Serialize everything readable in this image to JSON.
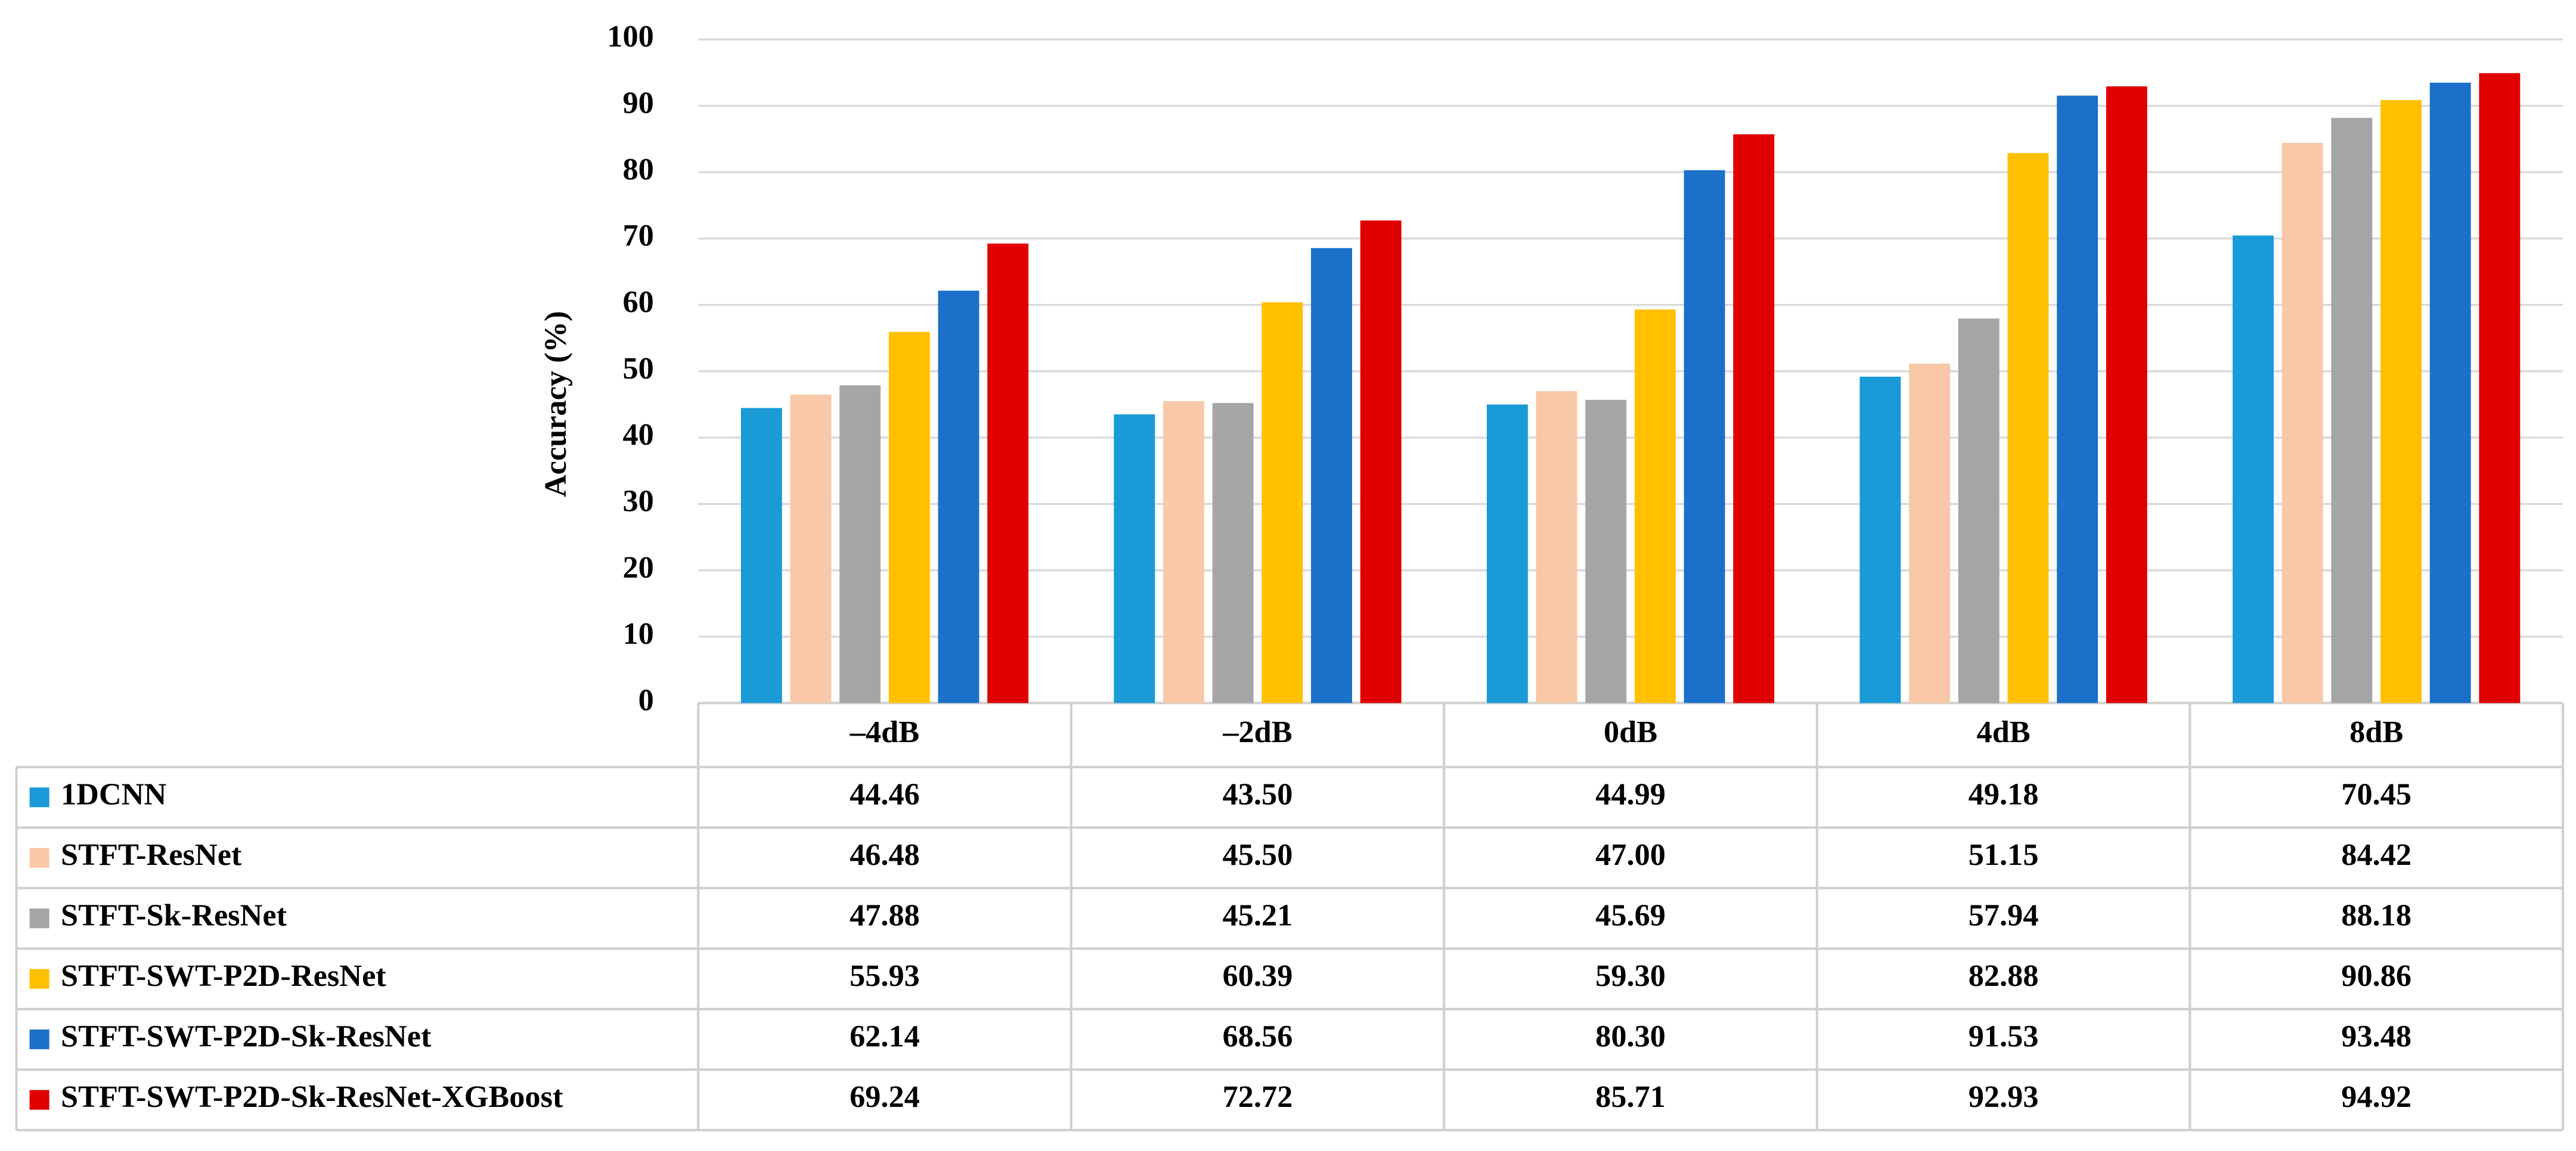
{
  "chart_data": {
    "type": "bar",
    "y_label": "Accuracy (%)",
    "categories": [
      "–4dB",
      "–2dB",
      "0dB",
      "4dB",
      "8dB"
    ],
    "ylim": [
      0,
      100
    ],
    "yticks": [
      0,
      10,
      20,
      30,
      40,
      50,
      60,
      70,
      80,
      90,
      100
    ],
    "grid": true,
    "series": [
      {
        "name": "1DCNN",
        "color": "#1a9ad6",
        "values": [
          44.46,
          43.5,
          44.99,
          49.18,
          70.45
        ],
        "value_labels": [
          "44.46",
          "43.50",
          "44.99",
          "49.18",
          "70.45"
        ]
      },
      {
        "name": "STFT-ResNet",
        "color": "#f8c8a8",
        "values": [
          46.48,
          45.5,
          47.0,
          51.15,
          84.42
        ],
        "value_labels": [
          "46.48",
          "45.50",
          "47.00",
          "51.15",
          "84.42"
        ]
      },
      {
        "name": "STFT-Sk-ResNet",
        "color": "#a5a5a5",
        "values": [
          47.88,
          45.21,
          45.69,
          57.94,
          88.18
        ],
        "value_labels": [
          "47.88",
          "45.21",
          "45.69",
          "57.94",
          "88.18"
        ]
      },
      {
        "name": "STFT-SWT-P2D-ResNet",
        "color": "#ffc000",
        "values": [
          55.93,
          60.39,
          59.3,
          82.88,
          90.86
        ],
        "value_labels": [
          "55.93",
          "60.39",
          "59.30",
          "82.88",
          "90.86"
        ]
      },
      {
        "name": "STFT-SWT-P2D-Sk-ResNet",
        "color": "#1b70c8",
        "values": [
          62.14,
          68.56,
          80.3,
          91.53,
          93.48
        ],
        "value_labels": [
          "62.14",
          "68.56",
          "80.30",
          "91.53",
          "93.48"
        ]
      },
      {
        "name": "STFT-SWT-P2D-Sk-ResNet-XGBoost",
        "color": "#e00000",
        "values": [
          69.24,
          72.72,
          85.71,
          92.93,
          94.92
        ],
        "value_labels": [
          "69.24",
          "72.72",
          "85.71",
          "92.93",
          "94.92"
        ]
      }
    ]
  }
}
